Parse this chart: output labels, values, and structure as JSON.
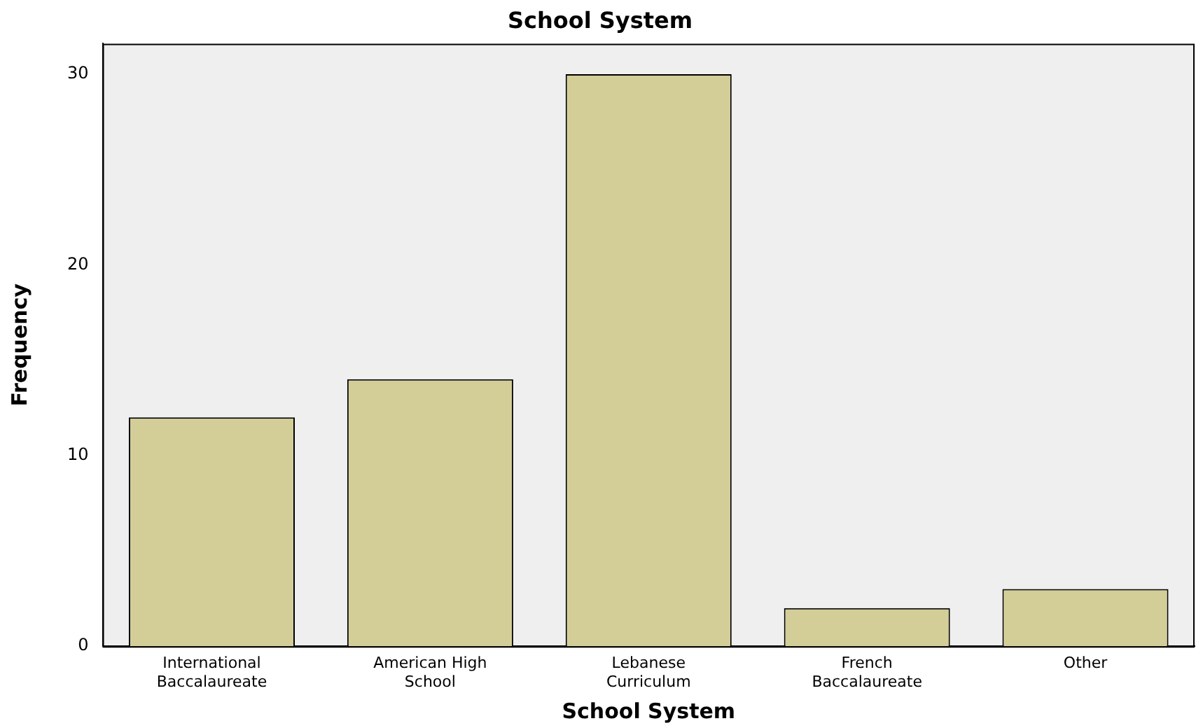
{
  "chart_data": {
    "type": "bar",
    "title": "School System",
    "xlabel": "School System",
    "ylabel": "Frequency",
    "categories": [
      "International Baccalaureate",
      "American High School",
      "Lebanese Curriculum",
      "French Baccalaureate",
      "Other"
    ],
    "values": [
      12,
      14,
      30,
      2,
      3
    ],
    "color": "#d3ce97",
    "ylim": [
      0,
      31.6
    ],
    "yticks": [
      0,
      10,
      20,
      30
    ],
    "grid": false,
    "legend": false
  }
}
